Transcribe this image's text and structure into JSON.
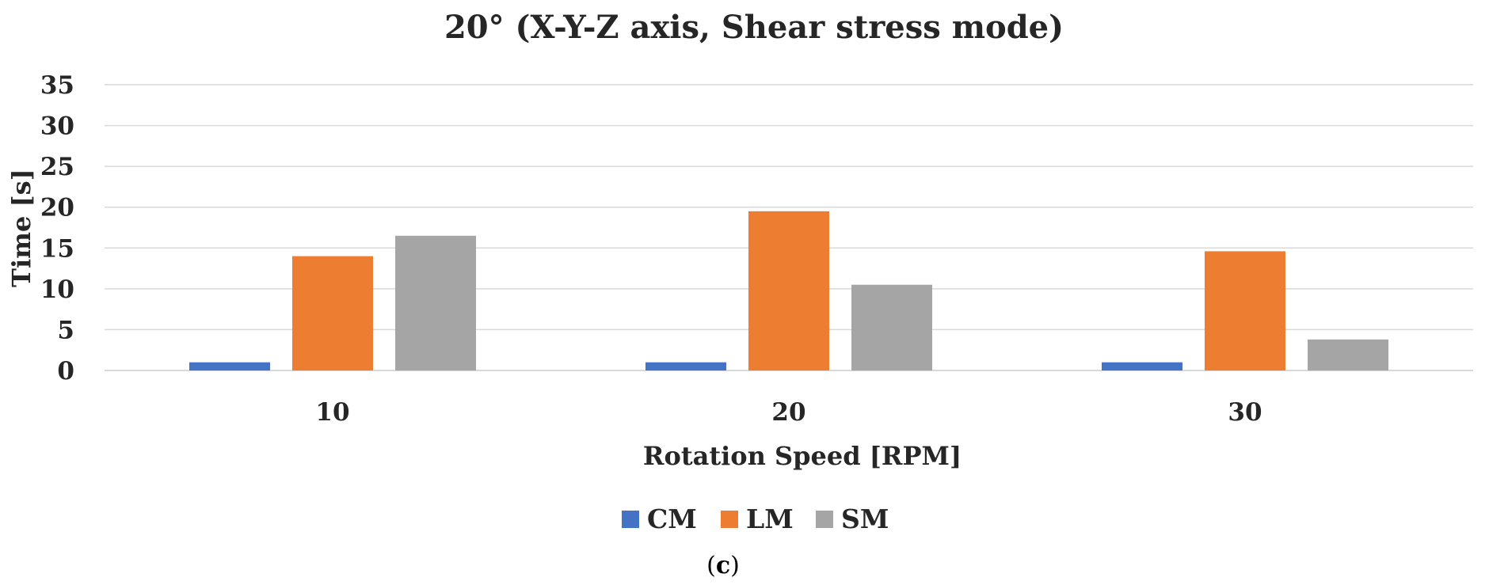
{
  "chart_data": {
    "type": "bar",
    "title": "20° (X-Y-Z axis, Shear stress mode)",
    "xlabel": "Rotation Speed [RPM]",
    "ylabel": "Time [s]",
    "categories": [
      "10",
      "20",
      "30"
    ],
    "ylim": [
      0,
      35
    ],
    "yticks": [
      0,
      5,
      10,
      15,
      20,
      25,
      30,
      35
    ],
    "grid": true,
    "legend_position": "bottom",
    "series": [
      {
        "name": "CM",
        "color": "#4472c4",
        "values": [
          1,
          1,
          1
        ]
      },
      {
        "name": "LM",
        "color": "#ed7d31",
        "values": [
          14,
          19.5,
          14.6
        ]
      },
      {
        "name": "SM",
        "color": "#a5a5a5",
        "values": [
          16.5,
          10.5,
          3.8
        ]
      }
    ]
  },
  "caption": {
    "open": "(",
    "letter": "c",
    "close": ")"
  }
}
